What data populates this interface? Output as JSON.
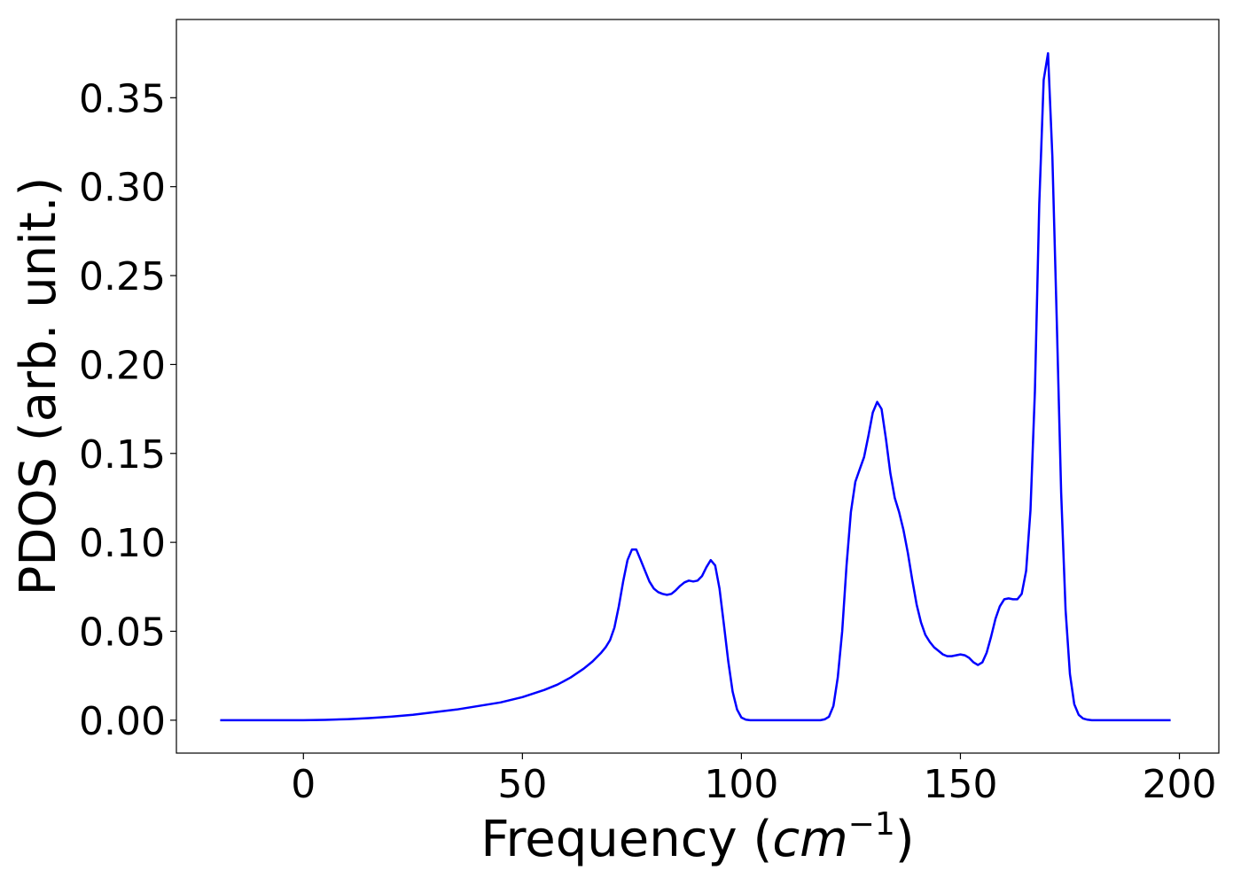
{
  "chart_data": {
    "type": "line",
    "xlabel": {
      "prefix": "Frequency (",
      "unit": "cm",
      "exponent": "−1",
      "suffix": ")"
    },
    "ylabel": "PDOS (arb. unit.)",
    "xlim": [
      -29,
      209
    ],
    "ylim": [
      -0.0185,
      0.394
    ],
    "xticks": [
      0,
      50,
      100,
      150,
      200
    ],
    "xtick_labels": [
      "0",
      "50",
      "100",
      "150",
      "200"
    ],
    "yticks": [
      0.0,
      0.05,
      0.1,
      0.15,
      0.2,
      0.25,
      0.3,
      0.35
    ],
    "ytick_labels": [
      "0.00",
      "0.05",
      "0.10",
      "0.15",
      "0.20",
      "0.25",
      "0.30",
      "0.35"
    ],
    "grid": false,
    "legend": "none",
    "series": [
      {
        "color": "#0000ff",
        "x": [
          -19,
          0,
          5,
          10,
          15,
          20,
          25,
          30,
          35,
          40,
          45,
          50,
          55,
          58,
          61,
          64,
          66,
          68,
          69,
          70,
          71,
          72,
          73,
          74,
          75,
          76,
          77,
          78,
          79,
          80,
          81,
          82,
          83,
          84,
          85,
          86,
          87,
          88,
          89,
          90,
          91,
          92,
          93,
          94,
          95,
          96,
          97,
          98,
          99,
          100,
          101,
          102,
          103,
          104,
          106,
          110,
          115,
          118,
          119,
          120,
          121,
          122,
          123,
          124,
          125,
          126,
          127,
          128,
          129,
          130,
          131,
          132,
          133,
          134,
          135,
          136,
          137,
          138,
          139,
          140,
          141,
          142,
          143,
          144,
          145,
          146,
          147,
          148,
          149,
          150,
          151,
          152,
          153,
          154,
          155,
          156,
          157,
          158,
          159,
          160,
          161,
          162,
          163,
          164,
          165,
          166,
          167,
          168,
          169,
          170,
          171,
          172,
          173,
          174,
          175,
          176,
          177,
          178,
          179,
          180,
          181,
          182,
          183,
          184,
          186,
          190,
          198
        ],
        "y": [
          0.0,
          0.0,
          0.0002,
          0.0006,
          0.0012,
          0.002,
          0.003,
          0.0045,
          0.006,
          0.008,
          0.01,
          0.013,
          0.017,
          0.02,
          0.024,
          0.029,
          0.033,
          0.038,
          0.041,
          0.045,
          0.052,
          0.064,
          0.078,
          0.09,
          0.096,
          0.096,
          0.09,
          0.084,
          0.078,
          0.074,
          0.072,
          0.071,
          0.0705,
          0.071,
          0.073,
          0.0755,
          0.0775,
          0.0785,
          0.078,
          0.0785,
          0.081,
          0.086,
          0.09,
          0.087,
          0.074,
          0.054,
          0.033,
          0.016,
          0.006,
          0.0015,
          0.0003,
          0.0,
          0.0,
          0.0,
          0.0,
          0.0,
          0.0,
          0.0,
          0.0005,
          0.002,
          0.008,
          0.024,
          0.05,
          0.087,
          0.117,
          0.134,
          0.141,
          0.148,
          0.16,
          0.173,
          0.179,
          0.175,
          0.158,
          0.139,
          0.125,
          0.117,
          0.107,
          0.094,
          0.079,
          0.065,
          0.055,
          0.048,
          0.044,
          0.041,
          0.039,
          0.037,
          0.036,
          0.036,
          0.0365,
          0.037,
          0.0365,
          0.035,
          0.0325,
          0.031,
          0.0325,
          0.038,
          0.047,
          0.057,
          0.064,
          0.068,
          0.0685,
          0.068,
          0.068,
          0.071,
          0.084,
          0.118,
          0.185,
          0.29,
          0.36,
          0.375,
          0.317,
          0.224,
          0.128,
          0.062,
          0.026,
          0.009,
          0.003,
          0.001,
          0.0003,
          0.0,
          0.0,
          0.0,
          0.0,
          0.0,
          0.0,
          0.0,
          0.0
        ]
      }
    ]
  }
}
